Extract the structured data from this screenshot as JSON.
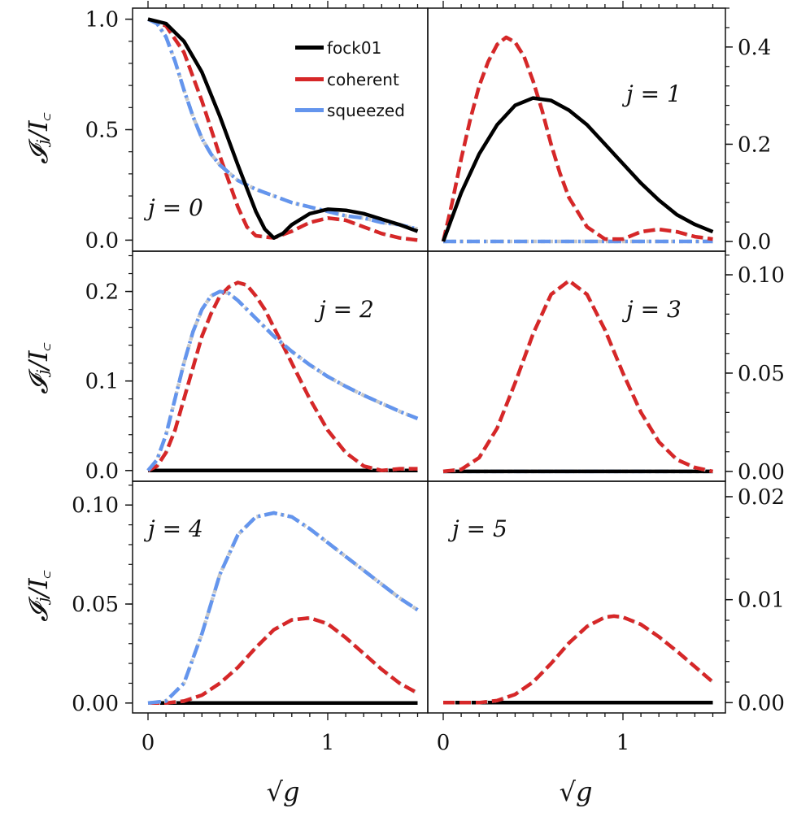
{
  "colors": {
    "fock01": "#000000",
    "coherent": "#d62728",
    "squeezed": "#6495ed",
    "reference": "#c8c8c8"
  },
  "chart_data": {
    "type": "line",
    "layout": "3x2 grid of panels",
    "xlabel": "√g",
    "ylabel": "𝓘ⱼ/I꜀",
    "xlim": [
      0,
      1.5
    ],
    "x_ticks": [
      "0",
      "1"
    ],
    "legend": {
      "location": "top-right of first panel",
      "entries": [
        {
          "label": "fock01",
          "style": "solid",
          "color_key": "fock01"
        },
        {
          "label": "coherent",
          "style": "dashed",
          "color_key": "coherent"
        },
        {
          "label": "squeezed",
          "style": "dash-dot",
          "color_key": "squeezed"
        }
      ]
    },
    "panels": [
      {
        "label": "j = 0",
        "ylim": [
          -0.05,
          1.05
        ],
        "y_ticks": [
          {
            "v": 0.0,
            "t": "0.0"
          },
          {
            "v": 0.5,
            "t": "0.5"
          },
          {
            "v": 1.0,
            "t": "1.0"
          }
        ],
        "series": [
          {
            "name": "fock01",
            "x": [
              0,
              0.1,
              0.2,
              0.3,
              0.4,
              0.5,
              0.6,
              0.65,
              0.7,
              0.75,
              0.8,
              0.9,
              1.0,
              1.1,
              1.2,
              1.3,
              1.4,
              1.5
            ],
            "y": [
              1.0,
              0.98,
              0.9,
              0.76,
              0.56,
              0.34,
              0.13,
              0.05,
              0.01,
              0.03,
              0.07,
              0.12,
              0.14,
              0.135,
              0.12,
              0.095,
              0.07,
              0.04
            ]
          },
          {
            "name": "coherent",
            "x": [
              0,
              0.1,
              0.2,
              0.3,
              0.4,
              0.5,
              0.55,
              0.6,
              0.7,
              0.8,
              0.9,
              1.0,
              1.1,
              1.2,
              1.3,
              1.4,
              1.5
            ],
            "y": [
              1.0,
              0.97,
              0.85,
              0.63,
              0.38,
              0.15,
              0.06,
              0.02,
              0.01,
              0.04,
              0.08,
              0.1,
              0.09,
              0.06,
              0.03,
              0.01,
              0.0
            ]
          },
          {
            "name": "squeezed",
            "x": [
              0,
              0.05,
              0.1,
              0.15,
              0.2,
              0.25,
              0.3,
              0.35,
              0.4,
              0.5,
              0.6,
              0.7,
              0.8,
              0.9,
              1.0,
              1.1,
              1.2,
              1.3,
              1.4,
              1.5
            ],
            "y": [
              1.0,
              0.98,
              0.92,
              0.81,
              0.68,
              0.56,
              0.46,
              0.39,
              0.34,
              0.27,
              0.23,
              0.2,
              0.17,
              0.15,
              0.13,
              0.11,
              0.1,
              0.08,
              0.07,
              0.05
            ]
          }
        ]
      },
      {
        "label": "j = 1",
        "ylim": [
          -0.02,
          0.48
        ],
        "y_ticks": [
          {
            "v": 0.0,
            "t": "0.0"
          },
          {
            "v": 0.2,
            "t": "0.2"
          },
          {
            "v": 0.4,
            "t": "0.4"
          }
        ],
        "series": [
          {
            "name": "fock01",
            "x": [
              0,
              0.1,
              0.2,
              0.3,
              0.4,
              0.5,
              0.6,
              0.7,
              0.8,
              0.9,
              1.0,
              1.1,
              1.2,
              1.3,
              1.4,
              1.5
            ],
            "y": [
              0,
              0.1,
              0.18,
              0.24,
              0.28,
              0.295,
              0.29,
              0.27,
              0.24,
              0.2,
              0.16,
              0.12,
              0.085,
              0.055,
              0.035,
              0.02
            ]
          },
          {
            "name": "coherent",
            "x": [
              0,
              0.05,
              0.1,
              0.15,
              0.2,
              0.25,
              0.3,
              0.35,
              0.4,
              0.45,
              0.5,
              0.55,
              0.6,
              0.65,
              0.7,
              0.8,
              0.9,
              1.0,
              1.1,
              1.2,
              1.3,
              1.4,
              1.5
            ],
            "y": [
              0,
              0.08,
              0.17,
              0.25,
              0.32,
              0.37,
              0.405,
              0.42,
              0.41,
              0.38,
              0.33,
              0.27,
              0.2,
              0.14,
              0.09,
              0.03,
              0.005,
              0.005,
              0.02,
              0.025,
              0.02,
              0.01,
              0.005
            ]
          },
          {
            "name": "squeezed",
            "x": [
              0,
              1.5
            ],
            "y": [
              0,
              0
            ]
          }
        ]
      },
      {
        "label": "j = 2",
        "ylim": [
          -0.012,
          0.245
        ],
        "y_ticks": [
          {
            "v": 0.0,
            "t": "0.0"
          },
          {
            "v": 0.1,
            "t": "0.1"
          },
          {
            "v": 0.2,
            "t": "0.2"
          }
        ],
        "series": [
          {
            "name": "fock01",
            "x": [
              0,
              1.5
            ],
            "y": [
              0,
              0
            ]
          },
          {
            "name": "coherent",
            "x": [
              0,
              0.05,
              0.1,
              0.15,
              0.2,
              0.25,
              0.3,
              0.35,
              0.4,
              0.45,
              0.5,
              0.55,
              0.6,
              0.65,
              0.7,
              0.75,
              0.8,
              0.9,
              1.0,
              1.1,
              1.2,
              1.3,
              1.4,
              1.5
            ],
            "y": [
              0,
              0.005,
              0.02,
              0.045,
              0.08,
              0.115,
              0.15,
              0.175,
              0.195,
              0.205,
              0.21,
              0.207,
              0.195,
              0.18,
              0.16,
              0.14,
              0.12,
              0.08,
              0.045,
              0.02,
              0.005,
              0.0,
              0.002,
              0.002
            ]
          },
          {
            "name": "squeezed",
            "x": [
              0,
              0.05,
              0.1,
              0.15,
              0.2,
              0.25,
              0.3,
              0.35,
              0.4,
              0.45,
              0.5,
              0.6,
              0.7,
              0.8,
              0.9,
              1.0,
              1.1,
              1.2,
              1.3,
              1.4,
              1.5
            ],
            "y": [
              0,
              0.012,
              0.04,
              0.08,
              0.12,
              0.155,
              0.18,
              0.195,
              0.2,
              0.198,
              0.19,
              0.17,
              0.15,
              0.133,
              0.118,
              0.105,
              0.094,
              0.084,
              0.075,
              0.066,
              0.058
            ]
          }
        ]
      },
      {
        "label": "j = 3",
        "ylim": [
          -0.005,
          0.112
        ],
        "y_ticks": [
          {
            "v": 0.0,
            "t": "0.00"
          },
          {
            "v": 0.05,
            "t": "0.05"
          },
          {
            "v": 0.1,
            "t": "0.10"
          }
        ],
        "series": [
          {
            "name": "fock01",
            "x": [
              0,
              1.5
            ],
            "y": [
              0,
              0
            ]
          },
          {
            "name": "coherent",
            "x": [
              0,
              0.1,
              0.2,
              0.3,
              0.4,
              0.5,
              0.6,
              0.7,
              0.8,
              0.9,
              1.0,
              1.1,
              1.2,
              1.3,
              1.4,
              1.5
            ],
            "y": [
              0,
              0.001,
              0.007,
              0.022,
              0.045,
              0.07,
              0.09,
              0.097,
              0.09,
              0.072,
              0.05,
              0.03,
              0.015,
              0.006,
              0.002,
              0.0
            ]
          },
          {
            "name": "squeezed",
            "x": [
              0,
              1.5
            ],
            "y": [
              0,
              0
            ]
          }
        ]
      },
      {
        "label": "j = 4",
        "ylim": [
          -0.005,
          0.112
        ],
        "y_ticks": [
          {
            "v": 0.0,
            "t": "0.00"
          },
          {
            "v": 0.05,
            "t": "0.05"
          },
          {
            "v": 0.1,
            "t": "0.10"
          }
        ],
        "series": [
          {
            "name": "fock01",
            "x": [
              0,
              1.5
            ],
            "y": [
              0,
              0
            ]
          },
          {
            "name": "coherent",
            "x": [
              0,
              0.1,
              0.2,
              0.3,
              0.4,
              0.5,
              0.6,
              0.7,
              0.8,
              0.9,
              1.0,
              1.1,
              1.2,
              1.3,
              1.4,
              1.5
            ],
            "y": [
              0,
              0,
              0.001,
              0.004,
              0.01,
              0.018,
              0.028,
              0.037,
              0.042,
              0.043,
              0.04,
              0.033,
              0.025,
              0.017,
              0.01,
              0.005
            ]
          },
          {
            "name": "squeezed",
            "x": [
              0,
              0.1,
              0.2,
              0.3,
              0.4,
              0.5,
              0.6,
              0.7,
              0.8,
              0.9,
              1.0,
              1.1,
              1.2,
              1.3,
              1.4,
              1.5
            ],
            "y": [
              0,
              0.001,
              0.01,
              0.035,
              0.065,
              0.085,
              0.094,
              0.096,
              0.094,
              0.088,
              0.081,
              0.074,
              0.067,
              0.06,
              0.053,
              0.047
            ]
          }
        ]
      },
      {
        "label": "j = 5",
        "ylim": [
          -0.001,
          0.0215
        ],
        "y_ticks": [
          {
            "v": 0.0,
            "t": "0.00"
          },
          {
            "v": 0.01,
            "t": "0.01"
          },
          {
            "v": 0.02,
            "t": "0.02"
          }
        ],
        "series": [
          {
            "name": "fock01",
            "x": [
              0,
              1.5
            ],
            "y": [
              0,
              0
            ]
          },
          {
            "name": "coherent",
            "x": [
              0,
              0.2,
              0.3,
              0.4,
              0.5,
              0.6,
              0.7,
              0.8,
              0.9,
              0.95,
              1.0,
              1.1,
              1.2,
              1.3,
              1.4,
              1.5
            ],
            "y": [
              0,
              0,
              0.0002,
              0.0008,
              0.002,
              0.0038,
              0.0058,
              0.0074,
              0.0083,
              0.0084,
              0.0083,
              0.0076,
              0.0064,
              0.005,
              0.0035,
              0.002
            ]
          },
          {
            "name": "squeezed",
            "x": [
              0,
              1.5
            ],
            "y": [
              0,
              0
            ]
          }
        ]
      }
    ]
  }
}
